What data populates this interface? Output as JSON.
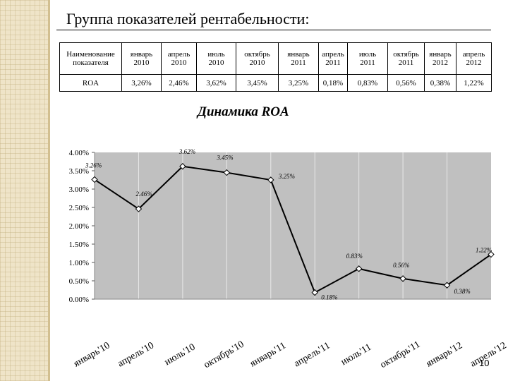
{
  "slide": {
    "title": "Группа показателей рентабельности:",
    "page_number": "10"
  },
  "table": {
    "header_label": "Наименование\nпоказателя",
    "columns": [
      "январь\n2010",
      "апрель\n2010",
      "июль\n2010",
      "октябрь\n2010",
      "январь\n2011",
      "апрель\n2011",
      "июль\n2011",
      "октябрь\n2011",
      "январь\n2012",
      "апрель\n2012"
    ],
    "row_label": "ROA",
    "values": [
      "3,26%",
      "2,46%",
      "3,62%",
      "3,45%",
      "3,25%",
      "0,18%",
      "0,83%",
      "0,56%",
      "0,38%",
      "1,22%"
    ]
  },
  "chart_data": {
    "type": "line",
    "title": "Динамика ROA",
    "categories": [
      "январь'10",
      "апрель'10",
      "июль'10",
      "октябрь'10",
      "январь'11",
      "апрель'11",
      "июль'11",
      "октябрь'11",
      "январь'12",
      "апрель'12"
    ],
    "values": [
      3.26,
      2.46,
      3.62,
      3.45,
      3.25,
      0.18,
      0.83,
      0.56,
      0.38,
      1.22
    ],
    "data_labels": [
      "3.26%",
      "2.46%",
      "3.62%",
      "3.45%",
      "3.25%",
      "0.18%",
      "0.83%",
      "0.56%",
      "0.38%",
      "1.22%"
    ],
    "y_ticks": [
      0,
      0.5,
      1,
      1.5,
      2,
      2.5,
      3,
      3.5,
      4
    ],
    "y_tick_labels": [
      "0.00%",
      "0.50%",
      "1.00%",
      "1.50%",
      "2.00%",
      "2.50%",
      "3.00%",
      "3.50%",
      "4.00%"
    ],
    "ylim": [
      0,
      4
    ],
    "grid": "vertical",
    "legend": "none",
    "colors": {
      "plot_background": "#c0c0c0",
      "line": "#000000",
      "marker_fill": "#ffffff",
      "grid": "#e8e8e8"
    }
  }
}
